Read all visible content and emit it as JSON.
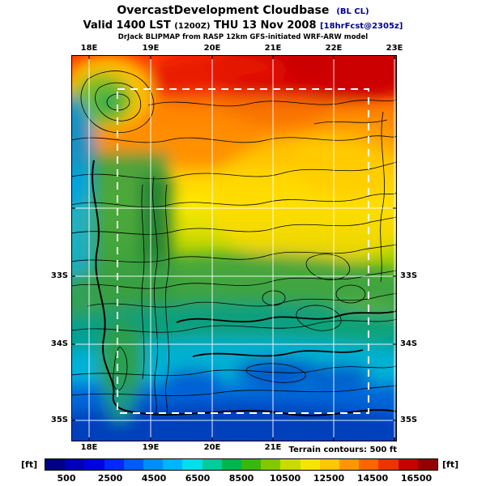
{
  "header": {
    "title": "OvercastDevelopment Cloudbase",
    "title_suffix": "(BL CL)",
    "valid_prefix": "Valid 1400 LST",
    "valid_zulu": "(1200Z)",
    "valid_date": "THU 13 Nov 2008",
    "valid_fcst": "[18hrFcst@2305z]",
    "model_line": "DrJack BLIPMAP from RASP 12km GFS-initiated WRF-ARW model"
  },
  "map": {
    "x_ticks_top": [
      "18E",
      "19E",
      "20E",
      "21E",
      "22E",
      "23E"
    ],
    "x_ticks_bottom": [
      "18E",
      "19E",
      "20E",
      "21E"
    ],
    "y_ticks_left": [
      "33S",
      "34S",
      "35S"
    ],
    "y_ticks_right": [
      "33S",
      "34S",
      "35S"
    ]
  },
  "footer": {
    "terrain_note": "Terrain contours: 500 ft",
    "unit_left": "[ft]",
    "unit_right": "[ft]",
    "tick_values": [
      "500",
      "2500",
      "4500",
      "6500",
      "8500",
      "10500",
      "12500",
      "14500",
      "16500"
    ],
    "colorbar_colors": [
      "#000080",
      "#0000b4",
      "#0000e6",
      "#0028ff",
      "#005aff",
      "#008cff",
      "#00b4ff",
      "#00e0e8",
      "#00cc9c",
      "#00b450",
      "#3cb414",
      "#82c800",
      "#c8dc00",
      "#f5e600",
      "#ffc800",
      "#ff9600",
      "#ff6400",
      "#f03200",
      "#c80000",
      "#900000"
    ]
  },
  "chart_data": {
    "type": "heatmap",
    "title": "OvercastDevelopment Cloudbase (BL CL)",
    "valid": "Valid 1400 LST (1200Z) THU 13 Nov 2008",
    "units": "ft",
    "scale_values": [
      500,
      2500,
      4500,
      6500,
      8500,
      10500,
      12500,
      14500,
      16500
    ],
    "x_ticks": [
      "18E",
      "19E",
      "20E",
      "21E",
      "22E",
      "23E"
    ],
    "y_ticks": [
      "33S",
      "34S",
      "35S"
    ],
    "legend_position": "bottom",
    "notes": "Cloudbase field: high (red/orange, ~14500-16500 ft) in north, grading through yellow and green to low (blue, ~500-2500 ft) along southern/coastal ocean areas; white lat/lon grid, white dashed inner model domain box, black terrain contours every 500 ft"
  }
}
